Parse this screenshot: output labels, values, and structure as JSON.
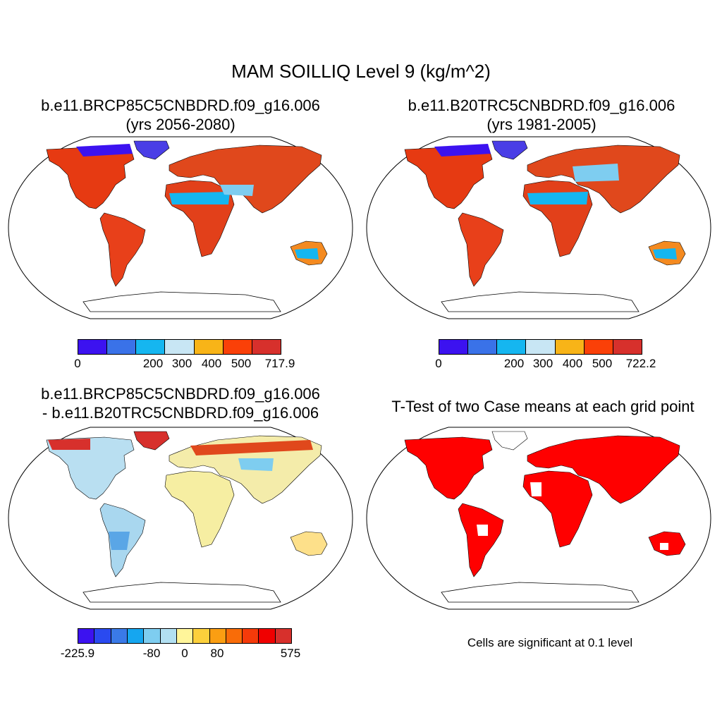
{
  "figure": {
    "title": "MAM SOILLIQ Level 9 (kg/m^2)"
  },
  "panels": [
    {
      "title_line1": "b.e11.BRCP85C5CNBDRD.f09_g16.006",
      "title_line2": "(yrs 2056-2080)",
      "colorbar": {
        "colors": [
          "#3c12f0",
          "#3a72e8",
          "#15b6f0",
          "#c8e6f4",
          "#f8b418",
          "#fa4008",
          "#d7302c"
        ],
        "tick_labels": [
          "0",
          "200",
          "300",
          "400",
          "500",
          "717.9"
        ]
      }
    },
    {
      "title_line1": "b.e11.B20TRC5CNBDRD.f09_g16.006",
      "title_line2": "(yrs 1981-2005)",
      "colorbar": {
        "colors": [
          "#3c12f0",
          "#3a72e8",
          "#15b6f0",
          "#c8e6f4",
          "#f8b418",
          "#fa4008",
          "#d7302c"
        ],
        "tick_labels": [
          "0",
          "200",
          "300",
          "400",
          "500",
          "722.2"
        ]
      }
    },
    {
      "title_line1": "b.e11.BRCP85C5CNBDRD.f09_g16.006",
      "title_line2": "- b.e11.B20TRC5CNBDRD.f09_g16.006",
      "colorbar": {
        "colors": [
          "#3c12f0",
          "#2a4af0",
          "#3a7ae8",
          "#15a6f0",
          "#7ecdf0",
          "#b2e0f2",
          "#fff59a",
          "#fcd03c",
          "#fb9e12",
          "#f96c08",
          "#f53a0a",
          "#f00000",
          "#d7302c"
        ],
        "tick_labels": [
          "-225.9",
          "-80",
          "0",
          "80",
          "575"
        ]
      }
    },
    {
      "title_line1": "T-Test of two Case means at each grid point",
      "note": "Cells are significant at 0.1 level",
      "significant_color": "#ff0000"
    }
  ]
}
